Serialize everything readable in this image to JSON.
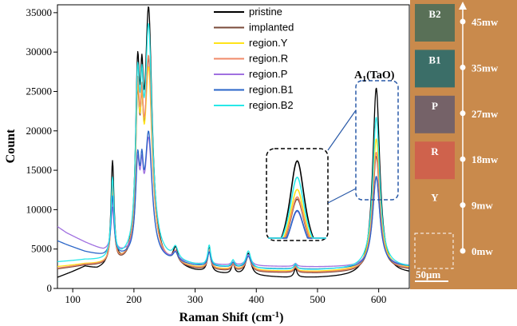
{
  "chart_data": {
    "type": "line",
    "xlabel": "Raman Shift (cm⁻¹)",
    "ylabel": "Count",
    "xlim": [
      75,
      650
    ],
    "ylim": [
      0,
      36000
    ],
    "x_ticks": [
      100,
      200,
      300,
      400,
      500,
      600
    ],
    "y_ticks": [
      0,
      5000,
      10000,
      15000,
      20000,
      25000,
      30000,
      35000
    ],
    "x_tick_labels": [
      "100",
      "200",
      "300",
      "400",
      "500",
      "600"
    ],
    "y_tick_labels": [
      "0",
      "5000",
      "10000",
      "15000",
      "20000",
      "25000",
      "30000",
      "35000"
    ],
    "grid": false,
    "legend_position": "top-center",
    "series": [
      {
        "name": "pristine",
        "color": "#000000",
        "baseline": [
          [
            75,
            1300
          ],
          [
            100,
            2000
          ],
          [
            120,
            2600
          ],
          [
            140,
            2200
          ],
          [
            170,
            2600
          ],
          [
            200,
            2400
          ],
          [
            240,
            2200
          ],
          [
            270,
            2400
          ],
          [
            300,
            2000
          ],
          [
            350,
            1700
          ],
          [
            400,
            1500
          ],
          [
            450,
            1300
          ],
          [
            500,
            1300
          ],
          [
            550,
            1400
          ],
          [
            580,
            1500
          ],
          [
            620,
            1800
          ],
          [
            650,
            1800
          ]
        ],
        "peaks": [
          [
            165,
            13000,
            3
          ],
          [
            206,
            21300,
            4
          ],
          [
            213,
            13000,
            3
          ],
          [
            224,
            31500,
            7
          ],
          [
            268,
            2000,
            5
          ],
          [
            323,
            3300,
            3
          ],
          [
            362,
            1300,
            3
          ],
          [
            387,
            2800,
            5
          ],
          [
            464,
            1100,
            3
          ],
          [
            596,
            23800,
            7
          ]
        ]
      },
      {
        "name": "implanted",
        "color": "#7a4a3a",
        "baseline": [
          [
            75,
            2400
          ],
          [
            120,
            2800
          ],
          [
            160,
            2700
          ],
          [
            200,
            2800
          ],
          [
            260,
            2700
          ],
          [
            300,
            2300
          ],
          [
            400,
            2000
          ],
          [
            500,
            1900
          ],
          [
            560,
            2000
          ],
          [
            620,
            2300
          ],
          [
            650,
            2300
          ]
        ],
        "peaks": [
          [
            165,
            9700,
            3
          ],
          [
            206,
            17600,
            4
          ],
          [
            213,
            10800,
            3
          ],
          [
            224,
            24800,
            7
          ],
          [
            268,
            1400,
            5
          ],
          [
            323,
            2400,
            3
          ],
          [
            362,
            800,
            3
          ],
          [
            387,
            2000,
            5
          ],
          [
            464,
            700,
            3
          ],
          [
            596,
            14600,
            7
          ]
        ]
      },
      {
        "name": "region.Y",
        "color": "#ffe31a",
        "baseline": [
          [
            75,
            2700
          ],
          [
            120,
            3000
          ],
          [
            160,
            2900
          ],
          [
            200,
            3000
          ],
          [
            260,
            2900
          ],
          [
            300,
            2500
          ],
          [
            400,
            2200
          ],
          [
            500,
            2100
          ],
          [
            560,
            2200
          ],
          [
            620,
            2500
          ],
          [
            650,
            2500
          ]
        ],
        "peaks": [
          [
            165,
            9500,
            3
          ],
          [
            206,
            18000,
            4
          ],
          [
            213,
            11000,
            3
          ],
          [
            224,
            23500,
            7
          ],
          [
            268,
            1300,
            5
          ],
          [
            323,
            2300,
            3
          ],
          [
            362,
            700,
            3
          ],
          [
            387,
            1900,
            5
          ],
          [
            464,
            600,
            3
          ],
          [
            596,
            16600,
            7
          ]
        ]
      },
      {
        "name": "region.R",
        "color": "#f08a68",
        "baseline": [
          [
            75,
            2500
          ],
          [
            120,
            2900
          ],
          [
            160,
            2800
          ],
          [
            200,
            2900
          ],
          [
            260,
            2800
          ],
          [
            300,
            2400
          ],
          [
            400,
            2100
          ],
          [
            500,
            2000
          ],
          [
            560,
            2100
          ],
          [
            620,
            2400
          ],
          [
            650,
            2400
          ]
        ],
        "peaks": [
          [
            165,
            9800,
            3
          ],
          [
            206,
            18800,
            4
          ],
          [
            213,
            11400,
            3
          ],
          [
            224,
            25000,
            7
          ],
          [
            268,
            1400,
            5
          ],
          [
            323,
            2400,
            3
          ],
          [
            362,
            800,
            3
          ],
          [
            387,
            2000,
            5
          ],
          [
            464,
            700,
            3
          ],
          [
            596,
            15000,
            7
          ]
        ]
      },
      {
        "name": "region.P",
        "color": "#a070e0",
        "baseline": [
          [
            75,
            7800
          ],
          [
            90,
            7000
          ],
          [
            120,
            5800
          ],
          [
            150,
            4700
          ],
          [
            200,
            4000
          ],
          [
            260,
            3400
          ],
          [
            300,
            3000
          ],
          [
            400,
            2800
          ],
          [
            500,
            2700
          ],
          [
            560,
            2700
          ],
          [
            620,
            2800
          ],
          [
            650,
            2800
          ]
        ],
        "peaks": [
          [
            165,
            5500,
            3
          ],
          [
            206,
            10000,
            4
          ],
          [
            213,
            6400,
            3
          ],
          [
            224,
            14500,
            7
          ],
          [
            268,
            1000,
            5
          ],
          [
            323,
            1600,
            3
          ],
          [
            362,
            600,
            3
          ],
          [
            387,
            1400,
            5
          ],
          [
            464,
            400,
            3
          ],
          [
            596,
            11300,
            7
          ]
        ]
      },
      {
        "name": "region.B1",
        "color": "#2a66c8",
        "baseline": [
          [
            75,
            6000
          ],
          [
            90,
            5500
          ],
          [
            120,
            4600
          ],
          [
            150,
            4000
          ],
          [
            200,
            3600
          ],
          [
            260,
            3200
          ],
          [
            300,
            2800
          ],
          [
            400,
            2500
          ],
          [
            500,
            2400
          ],
          [
            560,
            2500
          ],
          [
            620,
            2700
          ],
          [
            650,
            2700
          ]
        ],
        "peaks": [
          [
            165,
            7500,
            3
          ],
          [
            206,
            10800,
            4
          ],
          [
            213,
            7000,
            3
          ],
          [
            224,
            15500,
            7
          ],
          [
            268,
            1100,
            5
          ],
          [
            323,
            1800,
            3
          ],
          [
            362,
            600,
            3
          ],
          [
            387,
            1500,
            5
          ],
          [
            464,
            500,
            3
          ],
          [
            596,
            11600,
            7
          ]
        ]
      },
      {
        "name": "region.B2",
        "color": "#28e8e8",
        "baseline": [
          [
            75,
            3300
          ],
          [
            120,
            3500
          ],
          [
            160,
            3300
          ],
          [
            200,
            3400
          ],
          [
            260,
            3200
          ],
          [
            300,
            2800
          ],
          [
            400,
            2400
          ],
          [
            500,
            2300
          ],
          [
            560,
            2400
          ],
          [
            620,
            2600
          ],
          [
            650,
            2600
          ]
        ],
        "peaks": [
          [
            165,
            10200,
            3
          ],
          [
            206,
            19500,
            4
          ],
          [
            213,
            12000,
            3
          ],
          [
            224,
            28500,
            7
          ],
          [
            268,
            1500,
            5
          ],
          [
            323,
            2600,
            3
          ],
          [
            362,
            900,
            3
          ],
          [
            387,
            2200,
            5
          ],
          [
            464,
            700,
            3
          ],
          [
            596,
            19200,
            7
          ]
        ]
      }
    ],
    "annotations": {
      "peak_label_main": "A",
      "peak_label_sub": "1",
      "peak_label_rest": "(TaO)"
    }
  },
  "micrograph": {
    "background_color": "#c98a4c",
    "regions": [
      {
        "label": "B2",
        "power": "45mw",
        "color": "#4f6e58",
        "level": 0.0
      },
      {
        "label": "B1",
        "power": "35mw",
        "color": "#2f6b6a",
        "level": 0.2
      },
      {
        "label": "P",
        "power": "27mw",
        "color": "#6e5e6a",
        "level": 0.4
      },
      {
        "label": "R",
        "power": "18mw",
        "color": "#cf5e4c",
        "level": 0.6
      },
      {
        "label": "Y",
        "power": "9mw",
        "color": "#c98a4c",
        "level": 0.8
      },
      {
        "label": "",
        "power": "0mw",
        "color": "#c98a4c",
        "level": 1.0
      }
    ],
    "scale_bar_label": "50μm"
  }
}
